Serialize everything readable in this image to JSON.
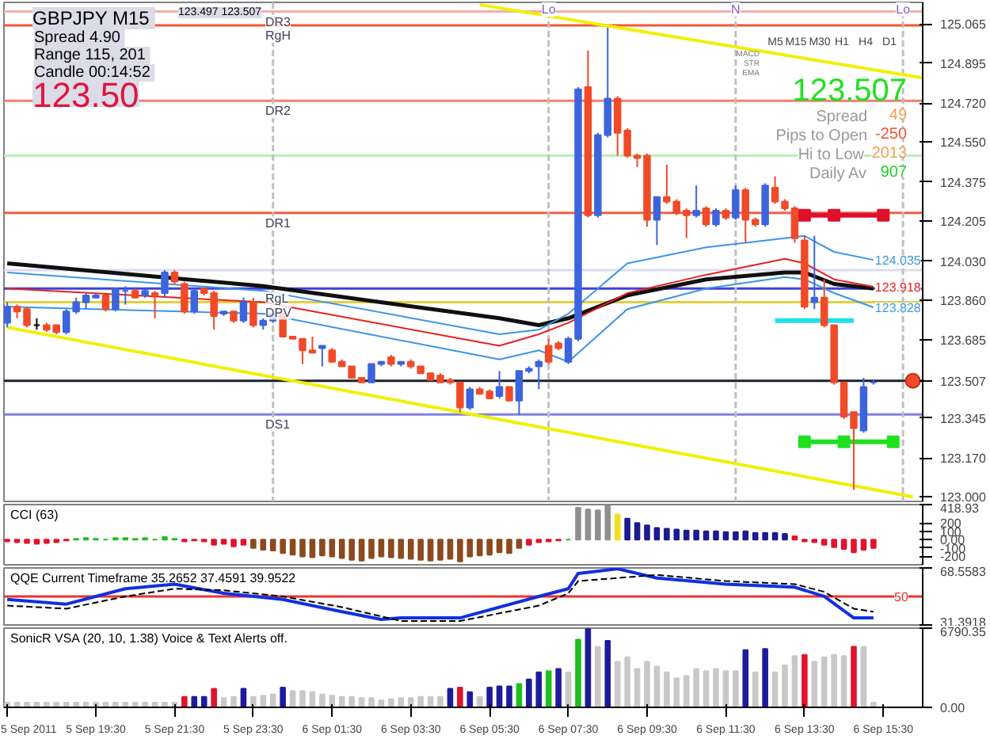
{
  "chart_data": [
    {
      "type": "candlestick",
      "title": "GBPJPY  M15",
      "tick_labels": "y",
      "x": [
        "2011-09-05T17:15",
        "2011-09-05T17:30",
        "2011-09-05T17:45",
        "2011-09-05T18:00",
        "2011-09-05T18:15",
        "2011-09-05T18:30",
        "2011-09-05T18:45",
        "2011-09-05T19:00",
        "2011-09-05T19:15",
        "2011-09-05T19:30",
        "2011-09-05T19:45",
        "2011-09-05T20:00",
        "2011-09-05T20:15",
        "2011-09-05T20:30",
        "2011-09-05T20:45",
        "2011-09-05T21:00",
        "2011-09-05T21:15",
        "2011-09-05T21:30",
        "2011-09-05T21:45",
        "2011-09-05T22:00",
        "2011-09-05T22:15",
        "2011-09-05T22:30",
        "2011-09-05T22:45",
        "2011-09-05T23:00",
        "2011-09-05T23:15",
        "2011-09-05T23:30",
        "2011-09-05T23:45",
        "2011-09-06T00:00",
        "2011-09-06T00:15",
        "2011-09-06T00:30",
        "2011-09-06T00:45",
        "2011-09-06T01:00",
        "2011-09-06T01:15",
        "2011-09-06T01:30",
        "2011-09-06T01:45",
        "2011-09-06T02:00",
        "2011-09-06T02:15",
        "2011-09-06T02:30",
        "2011-09-06T02:45",
        "2011-09-06T03:00",
        "2011-09-06T03:15",
        "2011-09-06T03:30",
        "2011-09-06T03:45",
        "2011-09-06T04:00",
        "2011-09-06T04:15",
        "2011-09-06T04:30",
        "2011-09-06T04:45",
        "2011-09-06T05:00",
        "2011-09-06T05:15",
        "2011-09-06T05:30",
        "2011-09-06T05:45",
        "2011-09-06T06:00",
        "2011-09-06T06:15",
        "2011-09-06T06:30",
        "2011-09-06T06:45",
        "2011-09-06T07:00",
        "2011-09-06T07:15",
        "2011-09-06T07:30",
        "2011-09-06T07:45",
        "2011-09-06T08:00",
        "2011-09-06T08:15",
        "2011-09-06T08:30",
        "2011-09-06T08:45",
        "2011-09-06T09:00",
        "2011-09-06T09:15",
        "2011-09-06T09:30",
        "2011-09-06T09:45",
        "2011-09-06T10:00",
        "2011-09-06T10:15",
        "2011-09-06T10:30",
        "2011-09-06T10:45",
        "2011-09-06T11:00",
        "2011-09-06T11:15",
        "2011-09-06T11:30",
        "2011-09-06T11:45",
        "2011-09-06T12:00",
        "2011-09-06T12:15",
        "2011-09-06T12:30",
        "2011-09-06T12:45",
        "2011-09-06T13:00",
        "2011-09-06T13:15",
        "2011-09-06T13:30",
        "2011-09-06T13:45",
        "2011-09-06T14:00",
        "2011-09-06T14:15",
        "2011-09-06T14:30",
        "2011-09-06T14:45",
        "2011-09-06T15:00",
        "2011-09-06T15:15"
      ],
      "ohlc": [
        [
          123.76,
          123.85,
          123.74,
          123.83
        ],
        [
          123.83,
          123.84,
          123.78,
          123.81
        ],
        [
          123.82,
          123.83,
          123.74,
          123.75
        ],
        [
          123.75,
          123.78,
          123.73,
          123.75
        ],
        [
          123.75,
          123.76,
          123.72,
          123.73
        ],
        [
          123.75,
          123.75,
          123.71,
          123.72
        ],
        [
          123.72,
          123.82,
          123.71,
          123.81
        ],
        [
          123.81,
          123.87,
          123.8,
          123.85
        ],
        [
          123.85,
          123.89,
          123.82,
          123.88
        ],
        [
          123.87,
          123.89,
          123.87,
          123.88
        ],
        [
          123.88,
          123.88,
          123.81,
          123.82
        ],
        [
          123.82,
          123.91,
          123.81,
          123.91
        ],
        [
          123.9,
          123.92,
          123.84,
          123.9
        ],
        [
          123.9,
          123.91,
          123.87,
          123.87
        ],
        [
          123.88,
          123.91,
          123.87,
          123.9
        ],
        [
          123.89,
          123.9,
          123.78,
          123.88
        ],
        [
          123.89,
          123.99,
          123.87,
          123.98
        ],
        [
          123.98,
          123.99,
          123.93,
          123.94
        ],
        [
          123.93,
          123.94,
          123.8,
          123.81
        ],
        [
          123.81,
          123.91,
          123.8,
          123.9
        ],
        [
          123.91,
          123.91,
          123.88,
          123.89
        ],
        [
          123.89,
          123.9,
          123.73,
          123.79
        ],
        [
          123.8,
          123.81,
          123.79,
          123.81
        ],
        [
          123.81,
          123.81,
          123.76,
          123.77
        ],
        [
          123.77,
          123.87,
          123.76,
          123.85
        ],
        [
          123.85,
          123.87,
          123.74,
          123.75
        ],
        [
          123.75,
          123.78,
          123.73,
          123.77
        ],
        [
          123.77,
          123.8,
          123.76,
          123.8
        ],
        [
          123.8,
          123.8,
          123.7,
          123.7
        ],
        [
          123.7,
          123.7,
          123.69,
          123.69
        ],
        [
          123.69,
          123.69,
          123.58,
          123.64
        ],
        [
          123.64,
          123.7,
          123.63,
          123.63
        ],
        [
          123.65,
          123.66,
          123.57,
          123.66
        ],
        [
          123.64,
          123.65,
          123.59,
          123.59
        ],
        [
          123.59,
          123.6,
          123.57,
          123.57
        ],
        [
          123.57,
          123.57,
          123.52,
          123.52
        ],
        [
          123.52,
          123.52,
          123.5,
          123.5
        ],
        [
          123.5,
          123.58,
          123.5,
          123.58
        ],
        [
          123.58,
          123.59,
          123.57,
          123.59
        ],
        [
          123.61,
          123.62,
          123.57,
          123.58
        ],
        [
          123.58,
          123.59,
          123.57,
          123.59
        ],
        [
          123.59,
          123.6,
          123.56,
          123.57
        ],
        [
          123.57,
          123.57,
          123.54,
          123.54
        ],
        [
          123.54,
          123.54,
          123.51,
          123.51
        ],
        [
          123.53,
          123.54,
          123.5,
          123.5
        ],
        [
          123.51,
          123.52,
          123.49,
          123.5
        ],
        [
          123.5,
          123.5,
          123.37,
          123.39
        ],
        [
          123.39,
          123.48,
          123.38,
          123.47
        ],
        [
          123.47,
          123.48,
          123.45,
          123.45
        ],
        [
          123.46,
          123.47,
          123.43,
          123.43
        ],
        [
          123.44,
          123.55,
          123.43,
          123.48
        ],
        [
          123.48,
          123.48,
          123.42,
          123.42
        ],
        [
          123.42,
          123.55,
          123.36,
          123.55
        ],
        [
          123.55,
          123.57,
          123.54,
          123.56
        ],
        [
          123.57,
          123.6,
          123.47,
          123.59
        ],
        [
          123.66,
          123.69,
          123.58,
          123.59
        ],
        [
          123.67,
          123.68,
          123.64,
          123.65
        ],
        [
          123.59,
          123.7,
          123.58,
          123.69
        ],
        [
          123.69,
          124.79,
          123.68,
          124.78
        ],
        [
          124.79,
          124.95,
          124.22,
          124.23
        ],
        [
          124.23,
          124.59,
          124.22,
          124.58
        ],
        [
          124.58,
          125.05,
          124.57,
          124.74
        ],
        [
          124.74,
          124.75,
          124.49,
          124.59
        ],
        [
          124.6,
          124.61,
          124.48,
          124.49
        ],
        [
          124.49,
          124.5,
          124.44,
          124.48
        ],
        [
          124.49,
          124.5,
          124.18,
          124.21
        ],
        [
          124.21,
          124.31,
          124.1,
          124.31
        ],
        [
          124.31,
          124.45,
          124.28,
          124.29
        ],
        [
          124.29,
          124.3,
          124.23,
          124.24
        ],
        [
          124.25,
          124.26,
          124.13,
          124.23
        ],
        [
          124.23,
          124.36,
          124.22,
          124.25
        ],
        [
          124.26,
          124.27,
          124.18,
          124.19
        ],
        [
          124.19,
          124.26,
          124.18,
          124.25
        ],
        [
          124.25,
          124.26,
          124.21,
          124.22
        ],
        [
          124.22,
          124.36,
          124.21,
          124.34
        ],
        [
          124.34,
          124.35,
          124.11,
          124.21
        ],
        [
          124.21,
          124.22,
          124.18,
          124.19
        ],
        [
          124.19,
          124.37,
          124.18,
          124.36
        ],
        [
          124.35,
          124.4,
          124.28,
          124.29
        ],
        [
          124.29,
          124.3,
          124.25,
          124.26
        ],
        [
          124.26,
          124.27,
          124.11,
          124.13
        ],
        [
          124.12,
          124.14,
          123.82,
          123.83
        ],
        [
          123.85,
          124.14,
          123.82,
          123.87
        ],
        [
          123.87,
          123.95,
          123.74,
          123.75
        ],
        [
          123.75,
          123.75,
          123.49,
          123.5
        ],
        [
          123.5,
          123.5,
          123.34,
          123.35
        ],
        [
          123.37,
          123.37,
          123.03,
          123.3
        ],
        [
          123.29,
          123.52,
          123.28,
          123.48
        ],
        [
          123.5,
          123.51,
          123.49,
          123.5
        ]
      ],
      "colors": [
        "#3c64dc",
        "#f04a28",
        "#f04a28",
        "#000000",
        "#f04a28",
        "#f04a28",
        "#3c64dc",
        "#3c64dc",
        "#3c64dc",
        "#3c64dc",
        "#f04a28",
        "#3c64dc",
        "#3c64dc",
        "#f04a28",
        "#3c64dc",
        "#f04a28",
        "#3c64dc",
        "#f04a28",
        "#f04a28",
        "#3c64dc",
        "#f04a28",
        "#f04a28",
        "#3c64dc",
        "#f04a28",
        "#3c64dc",
        "#f04a28",
        "#3c64dc",
        "#3c64dc",
        "#f04a28",
        "#f04a28",
        "#f04a28",
        "#f04a28",
        "#3c64dc",
        "#f04a28",
        "#f04a28",
        "#f04a28",
        "#f04a28",
        "#3c64dc",
        "#3c64dc",
        "#f04a28",
        "#3c64dc",
        "#f04a28",
        "#f04a28",
        "#f04a28",
        "#f04a28",
        "#f04a28",
        "#f04a28",
        "#3c64dc",
        "#f04a28",
        "#f04a28",
        "#3c64dc",
        "#f04a28",
        "#3c64dc",
        "#3c64dc",
        "#3c64dc",
        "#f04a28",
        "#f04a28",
        "#3c64dc",
        "#3c64dc",
        "#f04a28",
        "#3c64dc",
        "#3c64dc",
        "#f04a28",
        "#f04a28",
        "#f04a28",
        "#f04a28",
        "#3c64dc",
        "#f04a28",
        "#f04a28",
        "#f04a28",
        "#3c64dc",
        "#f04a28",
        "#3c64dc",
        "#f04a28",
        "#3c64dc",
        "#f04a28",
        "#f04a28",
        "#3c64dc",
        "#f04a28",
        "#f04a28",
        "#f04a28",
        "#f04a28",
        "#3c64dc",
        "#f04a28",
        "#f04a28",
        "#f04a28",
        "#f04a28",
        "#3c64dc",
        "#3c64dc"
      ],
      "series": [
        {
          "type": "line",
          "color": "#101010",
          "x": [
            "2011-09-05T17:15",
            "2011-09-05T23:45",
            "2011-09-06T05:45",
            "2011-09-06T06:45",
            "2011-09-06T07:30",
            "2011-09-06T09:00",
            "2011-09-06T11:00",
            "2011-09-06T13:00",
            "2011-09-06T13:30",
            "2011-09-06T14:15",
            "2011-09-06T15:15"
          ],
          "values": [
            124.02,
            123.92,
            123.78,
            123.75,
            123.78,
            123.88,
            123.95,
            123.98,
            123.98,
            123.93,
            123.91
          ]
        },
        {
          "type": "line",
          "color": "#e82020",
          "x": [
            "2011-09-05T17:15",
            "2011-09-05T23:45",
            "2011-09-06T05:45",
            "2011-09-06T06:45",
            "2011-09-06T07:30",
            "2011-09-06T09:00",
            "2011-09-06T11:00",
            "2011-09-06T13:00",
            "2011-09-06T13:30",
            "2011-09-06T14:15",
            "2011-09-06T15:15"
          ],
          "values": [
            123.91,
            123.85,
            123.66,
            123.71,
            123.76,
            123.89,
            123.97,
            124.04,
            124.02,
            123.95,
            123.918
          ],
          "value_labels": [
            null,
            null,
            null,
            null,
            null,
            null,
            null,
            null,
            null,
            null,
            "123.918"
          ]
        },
        {
          "type": "line",
          "color": "#3c96e6",
          "x": [
            "2011-09-05T17:15",
            "2011-09-05T23:45",
            "2011-09-06T05:45",
            "2011-09-06T06:45",
            "2011-09-06T07:30",
            "2011-09-06T09:00",
            "2011-09-06T11:00",
            "2011-09-06T13:00",
            "2011-09-06T13:30",
            "2011-09-06T14:15",
            "2011-09-06T15:15"
          ],
          "values": [
            123.98,
            123.9,
            123.71,
            123.73,
            123.8,
            124.02,
            124.09,
            124.13,
            124.14,
            124.07,
            124.035
          ],
          "value_labels": [
            null,
            null,
            null,
            null,
            null,
            null,
            null,
            null,
            null,
            null,
            "124.035"
          ]
        },
        {
          "type": "line",
          "color": "#3c96e6",
          "x": [
            "2011-09-05T17:15",
            "2011-09-05T23:45",
            "2011-09-06T05:45",
            "2011-09-06T06:45",
            "2011-09-06T07:30",
            "2011-09-06T09:00",
            "2011-09-06T11:00",
            "2011-09-06T13:00",
            "2011-09-06T13:30",
            "2011-09-06T14:15",
            "2011-09-06T15:15"
          ],
          "values": [
            123.83,
            123.8,
            123.6,
            123.64,
            123.59,
            123.82,
            123.91,
            123.96,
            123.95,
            123.89,
            123.828
          ],
          "value_labels": [
            null,
            null,
            null,
            null,
            null,
            null,
            null,
            null,
            null,
            null,
            "123.828"
          ]
        },
        {
          "type": "line",
          "color": "#e0102c",
          "x": [
            "2011-09-06T13:30",
            "2011-09-06T14:15",
            "2011-09-06T15:30"
          ],
          "values": [
            124.23,
            124.23,
            124.23
          ],
          "marker": "square"
        },
        {
          "type": "line",
          "color": "#20e0f0",
          "x": [
            "2011-09-06T12:45",
            "2011-09-06T14:45"
          ],
          "values": [
            123.77,
            123.77
          ]
        },
        {
          "type": "line",
          "color": "#20e020",
          "x": [
            "2011-09-06T13:30",
            "2011-09-06T14:30",
            "2011-09-06T15:45"
          ],
          "values": [
            123.24,
            123.24,
            123.24
          ],
          "marker": "square"
        },
        {
          "type": "line",
          "color": "#f0f000",
          "x": [
            "2011-09-06T05:15",
            "2011-09-06T16:30"
          ],
          "values": [
            125.15,
            124.83
          ]
        },
        {
          "type": "line",
          "color": "#f0f000",
          "x": [
            "2011-09-05T17:15",
            "2011-09-06T16:15"
          ],
          "values": [
            123.74,
            123.0
          ]
        },
        {
          "type": "scatter",
          "color": "#f04a28",
          "x": [
            "2011-09-06T16:15"
          ],
          "values": [
            123.507
          ],
          "marker": "circle"
        }
      ],
      "xlim": [
        "2011-09-05T17:10",
        "2011-09-06T16:30"
      ],
      "ylim": [
        122.98,
        125.16
      ],
      "yticks": [
        125.065,
        124.895,
        {
          "value": 124.72,
          "label": "124.720"
        },
        {
          "value": 124.55,
          "label": "124.550"
        },
        124.375,
        124.205,
        {
          "value": 124.03,
          "label": "124.030"
        },
        {
          "value": 123.86,
          "label": "123.860"
        },
        123.685,
        123.507,
        123.345,
        {
          "value": 123.17,
          "label": "123.170"
        },
        {
          "value": 123.0,
          "label": "123.000"
        }
      ],
      "ref_lines": [
        {
          "axis": "y",
          "value": 125.12,
          "label": "DR3",
          "color": "#f4b0a8"
        },
        {
          "axis": "y",
          "value": 125.06,
          "label": "RgH",
          "color": "#f05a30"
        },
        {
          "axis": "y",
          "value": 124.73,
          "label": "DR2",
          "color": "#f08070"
        },
        {
          "axis": "y",
          "value": 124.49,
          "color": "#b8f0b8"
        },
        {
          "axis": "y",
          "value": 124.24,
          "label": "DR1",
          "color": "#f06040"
        },
        {
          "axis": "y",
          "value": 123.99,
          "color": "#dcdcf0"
        },
        {
          "axis": "y",
          "value": 123.91,
          "label": "RgL",
          "color": "#4040e0"
        },
        {
          "axis": "y",
          "value": 123.85,
          "label": "DPV",
          "color": "#e0d040"
        },
        {
          "axis": "y",
          "value": 123.507,
          "color": "#1a2030"
        },
        {
          "axis": "y",
          "value": 123.36,
          "label": "DS1",
          "color": "#8080e0"
        },
        {
          "axis": "x",
          "value": "2011-09-06T00:00",
          "color": "#c0c0c0",
          "line_style": "dashed"
        },
        {
          "axis": "x",
          "value": "2011-09-06T07:00",
          "label": "Lo",
          "color": "#c0c0c0",
          "line_style": "dashed"
        },
        {
          "axis": "x",
          "value": "2011-09-06T11:45",
          "label": "N",
          "color": "#c0c0c0",
          "line_style": "dashed"
        },
        {
          "axis": "x",
          "value": "2011-09-06T16:00",
          "label": "Lo",
          "color": "#c0c0c0",
          "line_style": "dashed"
        }
      ],
      "annotations": [
        "Spread  4.90",
        "Range  115, 201",
        "Candle  00:14:52",
        "123.50",
        "123.497 123.507",
        "M5",
        "M15",
        "M30",
        "H1",
        "H4",
        "D1",
        "MACD",
        "STR",
        "EMA",
        "123.507",
        "Spread",
        "49",
        "Pips to Open",
        "-250",
        "Hi to Low",
        "2013",
        "Daily Av",
        "907"
      ]
    },
    {
      "type": "bar",
      "title": "CCI  (63)",
      "tick_labels": "y",
      "x": [
        "2011-09-05T17:15",
        "2011-09-05T17:30",
        "2011-09-05T17:45",
        "2011-09-05T18:00",
        "2011-09-05T18:15",
        "2011-09-05T18:30",
        "2011-09-05T18:45",
        "2011-09-05T19:00",
        "2011-09-05T19:15",
        "2011-09-05T19:30",
        "2011-09-05T19:45",
        "2011-09-05T20:00",
        "2011-09-05T20:15",
        "2011-09-05T20:30",
        "2011-09-05T20:45",
        "2011-09-05T21:00",
        "2011-09-05T21:15",
        "2011-09-05T21:30",
        "2011-09-05T21:45",
        "2011-09-05T22:00",
        "2011-09-05T22:15",
        "2011-09-05T22:30",
        "2011-09-05T22:45",
        "2011-09-05T23:00",
        "2011-09-05T23:15",
        "2011-09-05T23:30",
        "2011-09-05T23:45",
        "2011-09-06T00:00",
        "2011-09-06T00:15",
        "2011-09-06T00:30",
        "2011-09-06T00:45",
        "2011-09-06T01:00",
        "2011-09-06T01:15",
        "2011-09-06T01:30",
        "2011-09-06T01:45",
        "2011-09-06T02:00",
        "2011-09-06T02:15",
        "2011-09-06T02:30",
        "2011-09-06T02:45",
        "2011-09-06T03:00",
        "2011-09-06T03:15",
        "2011-09-06T03:30",
        "2011-09-06T03:45",
        "2011-09-06T04:00",
        "2011-09-06T04:15",
        "2011-09-06T04:30",
        "2011-09-06T04:45",
        "2011-09-06T05:00",
        "2011-09-06T05:15",
        "2011-09-06T05:30",
        "2011-09-06T05:45",
        "2011-09-06T06:00",
        "2011-09-06T06:15",
        "2011-09-06T06:30",
        "2011-09-06T06:45",
        "2011-09-06T07:00",
        "2011-09-06T07:15",
        "2011-09-06T07:30",
        "2011-09-06T07:45",
        "2011-09-06T08:00",
        "2011-09-06T08:15",
        "2011-09-06T08:30",
        "2011-09-06T08:45",
        "2011-09-06T09:00",
        "2011-09-06T09:15",
        "2011-09-06T09:30",
        "2011-09-06T09:45",
        "2011-09-06T10:00",
        "2011-09-06T10:15",
        "2011-09-06T10:30",
        "2011-09-06T10:45",
        "2011-09-06T11:00",
        "2011-09-06T11:15",
        "2011-09-06T11:30",
        "2011-09-06T11:45",
        "2011-09-06T12:00",
        "2011-09-06T12:15",
        "2011-09-06T12:30",
        "2011-09-06T12:45",
        "2011-09-06T13:00",
        "2011-09-06T13:15",
        "2011-09-06T13:30",
        "2011-09-06T13:45",
        "2011-09-06T14:00",
        "2011-09-06T14:15",
        "2011-09-06T14:30",
        "2011-09-06T14:45",
        "2011-09-06T15:00",
        "2011-09-06T15:15"
      ],
      "values": [
        -20,
        -30,
        -40,
        -50,
        -40,
        -30,
        -10,
        10,
        20,
        10,
        0,
        20,
        20,
        10,
        20,
        0,
        30,
        10,
        -20,
        -10,
        -20,
        -60,
        -50,
        -80,
        -60,
        -100,
        -120,
        -130,
        -160,
        -180,
        -200,
        -210,
        -190,
        -200,
        -220,
        -240,
        -250,
        -220,
        -200,
        -210,
        -220,
        -230,
        -240,
        -250,
        -240,
        -230,
        -260,
        -200,
        -190,
        -180,
        -150,
        -160,
        -100,
        -60,
        -30,
        -20,
        -10,
        0,
        380,
        360,
        350,
        410,
        300,
        250,
        200,
        170,
        140,
        130,
        120,
        110,
        110,
        100,
        100,
        90,
        90,
        100,
        80,
        80,
        80,
        70,
        40,
        -20,
        -30,
        -60,
        -90,
        -110,
        -150,
        -120,
        -100
      ],
      "colors": [
        "#e0142c",
        "#e0142c",
        "#e0142c",
        "#e0142c",
        "#e0142c",
        "#e0142c",
        "#e0142c",
        "#20c020",
        "#20c020",
        "#20c020",
        "#20c020",
        "#20c020",
        "#20c020",
        "#20c020",
        "#20c020",
        "#20c020",
        "#20c020",
        "#20c020",
        "#e0142c",
        "#e0142c",
        "#e0142c",
        "#e0142c",
        "#e0142c",
        "#e0142c",
        "#e0142c",
        "#8b4a20",
        "#8b4a20",
        "#8b4a20",
        "#8b4a20",
        "#8b4a20",
        "#8b4a20",
        "#8b4a20",
        "#8b4a20",
        "#8b4a20",
        "#8b4a20",
        "#8b4a20",
        "#8b4a20",
        "#8b4a20",
        "#8b4a20",
        "#8b4a20",
        "#8b4a20",
        "#8b4a20",
        "#8b4a20",
        "#8b4a20",
        "#8b4a20",
        "#8b4a20",
        "#8b4a20",
        "#8b4a20",
        "#8b4a20",
        "#8b4a20",
        "#8b4a20",
        "#8b4a20",
        "#8b4a20",
        "#e0142c",
        "#e0142c",
        "#e0142c",
        "#e0142c",
        "#20c020",
        "#909090",
        "#909090",
        "#909090",
        "#909090",
        "#f0e020",
        "#1c1c8c",
        "#1c1c8c",
        "#1c1c8c",
        "#1c1c8c",
        "#1c1c8c",
        "#1c1c8c",
        "#1c1c8c",
        "#1c1c8c",
        "#1c1c8c",
        "#1c1c8c",
        "#1c1c8c",
        "#1c1c8c",
        "#1c1c8c",
        "#1c1c8c",
        "#1c1c8c",
        "#1c1c8c",
        "#1c1c8c",
        "#e0142c",
        "#e0142c",
        "#e0142c",
        "#e0142c",
        "#e0142c",
        "#e0142c",
        "#e0142c",
        "#e0142c",
        "#e0142c"
      ],
      "xlim": [
        "2011-09-05T17:10",
        "2011-09-06T16:30"
      ],
      "ylim": [
        -300,
        418.93
      ],
      "yticks": [
        418.93,
        200,
        100,
        {
          "value": 0,
          "label": "0.00"
        },
        -100,
        -200
      ]
    },
    {
      "type": "line",
      "title": "QQE Current Timeframe 35.2652 37.4591 39.9522",
      "tick_labels": "y",
      "series": [
        {
          "type": "line",
          "color": "#1030e0",
          "x": [
            "2011-09-05T17:15",
            "2011-09-05T18:45",
            "2011-09-05T20:15",
            "2011-09-05T21:30",
            "2011-09-05T22:45",
            "2011-09-06T00:15",
            "2011-09-06T01:45",
            "2011-09-06T02:45",
            "2011-09-06T03:15",
            "2011-09-06T04:45",
            "2011-09-06T06:45",
            "2011-09-06T07:30",
            "2011-09-06T07:45",
            "2011-09-06T08:45",
            "2011-09-06T09:45",
            "2011-09-06T11:30",
            "2011-09-06T13:15",
            "2011-09-06T14:00",
            "2011-09-06T14:45",
            "2011-09-06T15:15"
          ],
          "values": [
            48,
            45,
            55,
            58,
            52,
            48,
            40,
            35,
            36,
            36,
            50,
            55,
            65,
            68,
            62,
            58,
            56,
            50,
            36,
            36
          ]
        },
        {
          "type": "line",
          "color": "#000000",
          "line_style": "dashed",
          "x": [
            "2011-09-05T17:15",
            "2011-09-05T18:45",
            "2011-09-05T20:15",
            "2011-09-05T21:30",
            "2011-09-05T22:45",
            "2011-09-06T00:15",
            "2011-09-06T01:45",
            "2011-09-06T02:45",
            "2011-09-06T03:15",
            "2011-09-06T04:45",
            "2011-09-06T06:45",
            "2011-09-06T07:30",
            "2011-09-06T07:45",
            "2011-09-06T08:45",
            "2011-09-06T09:45",
            "2011-09-06T11:30",
            "2011-09-06T13:15",
            "2011-09-06T14:00",
            "2011-09-06T14:45",
            "2011-09-06T15:15"
          ],
          "values": [
            44,
            42,
            50,
            55,
            54,
            50,
            43,
            37,
            34,
            34,
            44,
            52,
            60,
            62,
            64,
            60,
            58,
            53,
            42,
            40
          ]
        }
      ],
      "xlim": [
        "2011-09-05T17:10",
        "2011-09-06T16:30"
      ],
      "ylim": [
        31.3918,
        68.5583
      ],
      "yticks": [
        68.5583,
        31.3918
      ],
      "ref_lines": [
        {
          "axis": "y",
          "value": 50,
          "label": "50",
          "color": "#f03030"
        }
      ]
    },
    {
      "type": "bar",
      "title": "SonicR VSA  (20, 10, 1.38)   Voice & Text Alerts off.",
      "x": [
        "2011-09-05T17:15",
        "2011-09-05T17:30",
        "2011-09-05T17:45",
        "2011-09-05T18:00",
        "2011-09-05T18:15",
        "2011-09-05T18:30",
        "2011-09-05T18:45",
        "2011-09-05T19:00",
        "2011-09-05T19:15",
        "2011-09-05T19:30",
        "2011-09-05T19:45",
        "2011-09-05T20:00",
        "2011-09-05T20:15",
        "2011-09-05T20:30",
        "2011-09-05T20:45",
        "2011-09-05T21:00",
        "2011-09-05T21:15",
        "2011-09-05T21:30",
        "2011-09-05T21:45",
        "2011-09-05T22:00",
        "2011-09-05T22:15",
        "2011-09-05T22:30",
        "2011-09-05T22:45",
        "2011-09-05T23:00",
        "2011-09-05T23:15",
        "2011-09-05T23:30",
        "2011-09-05T23:45",
        "2011-09-06T00:00",
        "2011-09-06T00:15",
        "2011-09-06T00:30",
        "2011-09-06T00:45",
        "2011-09-06T01:00",
        "2011-09-06T01:15",
        "2011-09-06T01:30",
        "2011-09-06T01:45",
        "2011-09-06T02:00",
        "2011-09-06T02:15",
        "2011-09-06T02:30",
        "2011-09-06T02:45",
        "2011-09-06T03:00",
        "2011-09-06T03:15",
        "2011-09-06T03:30",
        "2011-09-06T03:45",
        "2011-09-06T04:00",
        "2011-09-06T04:15",
        "2011-09-06T04:30",
        "2011-09-06T04:45",
        "2011-09-06T05:00",
        "2011-09-06T05:15",
        "2011-09-06T05:30",
        "2011-09-06T05:45",
        "2011-09-06T06:00",
        "2011-09-06T06:15",
        "2011-09-06T06:30",
        "2011-09-06T06:45",
        "2011-09-06T07:00",
        "2011-09-06T07:15",
        "2011-09-06T07:30",
        "2011-09-06T07:45",
        "2011-09-06T08:00",
        "2011-09-06T08:15",
        "2011-09-06T08:30",
        "2011-09-06T08:45",
        "2011-09-06T09:00",
        "2011-09-06T09:15",
        "2011-09-06T09:30",
        "2011-09-06T09:45",
        "2011-09-06T10:00",
        "2011-09-06T10:15",
        "2011-09-06T10:30",
        "2011-09-06T10:45",
        "2011-09-06T11:00",
        "2011-09-06T11:15",
        "2011-09-06T11:30",
        "2011-09-06T11:45",
        "2011-09-06T12:00",
        "2011-09-06T12:15",
        "2011-09-06T12:30",
        "2011-09-06T12:45",
        "2011-09-06T13:00",
        "2011-09-06T13:15",
        "2011-09-06T13:30",
        "2011-09-06T13:45",
        "2011-09-06T14:00",
        "2011-09-06T14:15",
        "2011-09-06T14:30",
        "2011-09-06T14:45",
        "2011-09-06T15:00",
        "2011-09-06T15:15"
      ],
      "values": [
        400,
        400,
        400,
        400,
        400,
        400,
        400,
        400,
        400,
        400,
        400,
        400,
        400,
        400,
        400,
        400,
        400,
        400,
        900,
        900,
        900,
        1600,
        800,
        900,
        1600,
        900,
        1000,
        1100,
        1700,
        1400,
        1400,
        1300,
        1100,
        1000,
        900,
        900,
        800,
        800,
        600,
        700,
        800,
        800,
        900,
        900,
        900,
        1600,
        1700,
        1300,
        900,
        1700,
        1800,
        1800,
        2000,
        2400,
        3000,
        3100,
        3300,
        3000,
        5800,
        6700,
        5200,
        5700,
        3900,
        4300,
        3300,
        3900,
        3500,
        3000,
        2500,
        2700,
        3300,
        3100,
        3300,
        3100,
        3100,
        4900,
        3000,
        5000,
        3000,
        3600,
        4400,
        4500,
        3900,
        4300,
        4500,
        4400,
        5200,
        5200,
        400
      ],
      "colors": [
        "#c8c8c8",
        "#c8c8c8",
        "#c8c8c8",
        "#c8c8c8",
        "#c8c8c8",
        "#c8c8c8",
        "#c8c8c8",
        "#c8c8c8",
        "#c8c8c8",
        "#c8c8c8",
        "#c8c8c8",
        "#c8c8c8",
        "#c8c8c8",
        "#c8c8c8",
        "#c8c8c8",
        "#c8c8c8",
        "#c8c8c8",
        "#c8c8c8",
        "#e0142c",
        "#1c1c9c",
        "#1c1c9c",
        "#e0142c",
        "#c8c8c8",
        "#c8c8c8",
        "#1c1c9c",
        "#c8c8c8",
        "#c8c8c8",
        "#c8c8c8",
        "#1c1c9c",
        "#c8c8c8",
        "#c8c8c8",
        "#c8c8c8",
        "#c8c8c8",
        "#c8c8c8",
        "#c8c8c8",
        "#c8c8c8",
        "#c8c8c8",
        "#c8c8c8",
        "#c8c8c8",
        "#c8c8c8",
        "#c8c8c8",
        "#c8c8c8",
        "#c8c8c8",
        "#c8c8c8",
        "#c8c8c8",
        "#1c1c9c",
        "#e0142c",
        "#1c1c9c",
        "#c8c8c8",
        "#1c1c9c",
        "#1c1c9c",
        "#1c1c9c",
        "#20c020",
        "#1c1c9c",
        "#1c1c9c",
        "#20c020",
        "#1c1c9c",
        "#c8c8c8",
        "#20c020",
        "#1c1c9c",
        "#c8c8c8",
        "#1c1c9c",
        "#c8c8c8",
        "#c8c8c8",
        "#c8c8c8",
        "#c8c8c8",
        "#c8c8c8",
        "#c8c8c8",
        "#c8c8c8",
        "#c8c8c8",
        "#c8c8c8",
        "#c8c8c8",
        "#c8c8c8",
        "#c8c8c8",
        "#c8c8c8",
        "#1c1c9c",
        "#c8c8c8",
        "#1c1c9c",
        "#c8c8c8",
        "#c8c8c8",
        "#c8c8c8",
        "#e0142c",
        "#c8c8c8",
        "#c8c8c8",
        "#c8c8c8",
        "#c8c8c8",
        "#e0142c",
        "#c8c8c8",
        "#c8c8c8"
      ],
      "xlim": [
        "2011-09-05T17:10",
        "2011-09-06T16:30"
      ],
      "ylim": [
        0,
        6790.35
      ],
      "yticks": [
        6790.35,
        {
          "value": 0,
          "label": "0.00"
        }
      ],
      "xticks": [
        {
          "value": "2011-09-05T17:15",
          "label": "5 Sep 2011"
        },
        {
          "value": "2011-09-05T19:30",
          "label": "5 Sep 19:30"
        },
        {
          "value": "2011-09-05T21:30",
          "label": "5 Sep 21:30"
        },
        {
          "value": "2011-09-05T23:30",
          "label": "5 Sep 23:30"
        },
        {
          "value": "2011-09-06T01:30",
          "label": "6 Sep 01:30"
        },
        {
          "value": "2011-09-06T03:30",
          "label": "6 Sep 03:30"
        },
        {
          "value": "2011-09-06T05:30",
          "label": "6 Sep 05:30"
        },
        {
          "value": "2011-09-06T07:30",
          "label": "6 Sep 07:30"
        },
        {
          "value": "2011-09-06T09:30",
          "label": "6 Sep 09:30"
        },
        {
          "value": "2011-09-06T11:30",
          "label": "6 Sep 11:30"
        },
        {
          "value": "2011-09-06T13:30",
          "label": "6 Sep 13:30"
        },
        {
          "value": "2011-09-06T15:30",
          "label": "6 Sep 15:30"
        }
      ]
    }
  ]
}
